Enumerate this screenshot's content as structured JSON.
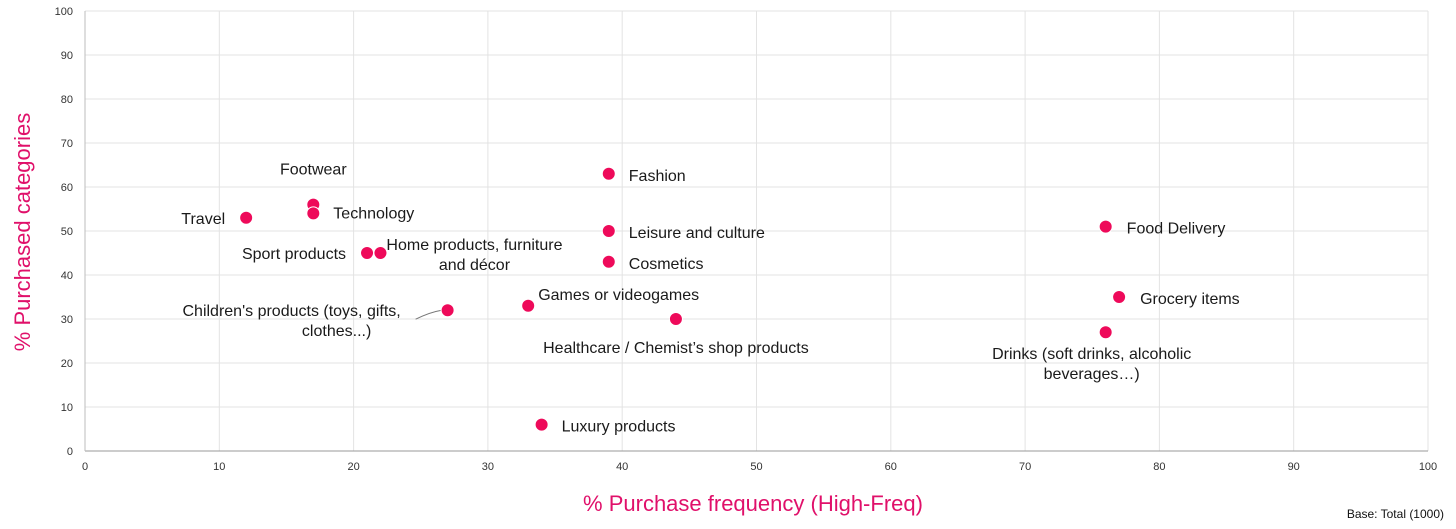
{
  "chart_data": {
    "type": "scatter",
    "title": "",
    "xlabel": "% Purchase frequency (High-Freq)",
    "ylabel": "% Purchased categories",
    "xlim": [
      0,
      100
    ],
    "ylim": [
      0,
      100
    ],
    "xticks": [
      0,
      10,
      20,
      30,
      40,
      50,
      60,
      70,
      80,
      90,
      100
    ],
    "yticks": [
      0,
      10,
      20,
      30,
      40,
      50,
      60,
      70,
      80,
      90,
      100
    ],
    "grid": true,
    "legend": "none",
    "point_color": "#ee0a5a",
    "axis_title_color": "#e0106a",
    "points": [
      {
        "label": "Travel",
        "x": 12,
        "y": 53
      },
      {
        "label": "Footwear",
        "x": 17,
        "y": 56
      },
      {
        "label": "Technology",
        "x": 17,
        "y": 54
      },
      {
        "label": "Sport products",
        "x": 21,
        "y": 45
      },
      {
        "label": "Home products, furniture and décor",
        "x": 22,
        "y": 45
      },
      {
        "label": "Children's products (toys, gifts, clothes...)",
        "x": 27,
        "y": 32
      },
      {
        "label": "Games or videogames",
        "x": 33,
        "y": 33
      },
      {
        "label": "Luxury products",
        "x": 34,
        "y": 6
      },
      {
        "label": "Fashion",
        "x": 39,
        "y": 63
      },
      {
        "label": "Leisure and culture",
        "x": 39,
        "y": 50
      },
      {
        "label": "Cosmetics",
        "x": 39,
        "y": 43
      },
      {
        "label": "Healthcare / Chemist’s shop products",
        "x": 44,
        "y": 30
      },
      {
        "label": "Food Delivery",
        "x": 76,
        "y": 51
      },
      {
        "label": "Drinks (soft drinks, alcoholic beverages…)",
        "x": 76,
        "y": 27
      },
      {
        "label": "Grocery items",
        "x": 77,
        "y": 35
      }
    ]
  },
  "base_note": "Base: Total (1000)"
}
